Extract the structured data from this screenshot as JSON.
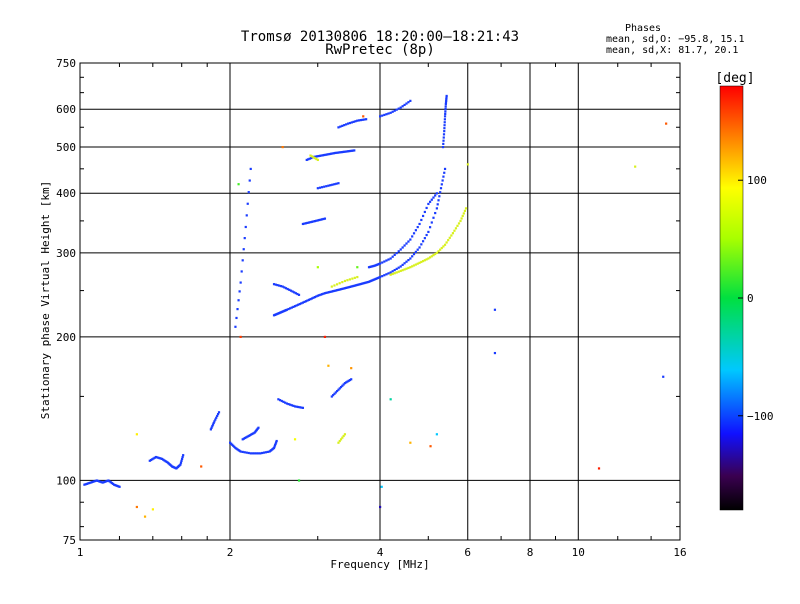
{
  "chart_data": {
    "type": "scatter",
    "title": "Tromsø 20130806 18:20:00–18:21:43",
    "subtitle": "RwPretec (8p)",
    "xlabel": "Frequency [MHz]",
    "ylabel": "Stationary phase Virtual Height [km]",
    "x_scale": "log",
    "y_scale": "log",
    "xlim": [
      1,
      16
    ],
    "ylim": [
      75,
      750
    ],
    "x_ticks": [
      1,
      2,
      4,
      6,
      8,
      10,
      16
    ],
    "x_tick_labels": [
      "1",
      "2",
      "4",
      "6",
      "8",
      "10",
      "16"
    ],
    "y_ticks": [
      75,
      100,
      200,
      300,
      400,
      500,
      600,
      750
    ],
    "y_tick_labels": [
      "75",
      "100",
      "200",
      "300",
      "400",
      "500",
      "600",
      "750"
    ],
    "grid": true,
    "stats": {
      "heading": "Phases",
      "line_o": "mean, sd,O: −95.8, 15.1",
      "line_x": "mean, sd,X:  81.7, 20.1"
    },
    "colorbar": {
      "label": "[deg]",
      "range": [
        -180,
        180
      ],
      "ticks": [
        100,
        0,
        -100
      ],
      "tick_labels": [
        "100",
        "0",
        "−100"
      ]
    },
    "series": [
      {
        "mode": "O",
        "phase": -100,
        "color": "#1a3cff",
        "traces": [
          {
            "x": [
              1.02,
              1.05,
              1.08,
              1.11,
              1.14,
              1.17,
              1.2
            ],
            "y": [
              98,
              99,
              100,
              99,
              100,
              98,
              97
            ]
          },
          {
            "x": [
              1.38,
              1.42,
              1.46,
              1.5,
              1.53,
              1.56,
              1.59,
              1.61
            ],
            "y": [
              110,
              112,
              111,
              109,
              107,
              106,
              108,
              113
            ]
          },
          {
            "x": [
              2.0,
              2.05,
              2.1,
              2.2,
              2.3,
              2.4,
              2.45,
              2.48
            ],
            "y": [
              120,
              117,
              115,
              114,
              114,
              115,
              117,
              121
            ]
          },
          {
            "x": [
              1.83,
              1.86,
              1.9
            ],
            "y": [
              128,
              133,
              139
            ]
          },
          {
            "x": [
              2.12,
              2.18,
              2.24,
              2.28
            ],
            "y": [
              122,
              124,
              126,
              129
            ]
          },
          {
            "x": [
              2.5,
              2.6,
              2.7,
              2.8
            ],
            "y": [
              148,
              145,
              143,
              142
            ]
          },
          {
            "x": [
              3.2,
              3.3,
              3.4,
              3.5
            ],
            "y": [
              150,
              155,
              160,
              163
            ]
          },
          {
            "x": [
              2.45,
              2.5,
              2.55,
              2.6,
              2.7,
              2.8,
              2.9,
              3.0,
              3.1,
              3.2,
              3.3,
              3.4,
              3.5,
              3.6,
              3.7,
              3.8,
              3.9,
              4.0,
              4.2,
              4.4,
              4.6,
              4.8,
              5.0,
              5.2,
              5.3,
              5.4
            ],
            "y": [
              222,
              224,
              226,
              228,
              232,
              236,
              240,
              244,
              247,
              249,
              251,
              253,
              255,
              257,
              259,
              261,
              264,
              267,
              273,
              281,
              292,
              308,
              332,
              372,
              410,
              450
            ]
          },
          {
            "x": [
              5.35,
              5.38,
              5.4,
              5.42,
              5.44
            ],
            "y": [
              500,
              540,
              580,
              615,
              640
            ]
          },
          {
            "x": [
              2.45,
              2.55,
              2.65,
              2.75
            ],
            "y": [
              258,
              255,
              250,
              245
            ]
          },
          {
            "x": [
              3.8,
              3.9,
              4.0,
              4.2,
              4.4,
              4.6,
              4.8,
              5.0,
              5.2
            ],
            "y": [
              280,
              282,
              285,
              292,
              305,
              320,
              345,
              380,
              400
            ]
          },
          {
            "x": [
              2.85,
              2.95,
              3.05,
              3.15,
              3.25,
              3.35,
              3.45,
              3.55
            ],
            "y": [
              470,
              477,
              480,
              483,
              486,
              488,
              490,
              492
            ]
          },
          {
            "x": [
              3.3,
              3.45,
              3.6,
              3.75
            ],
            "y": [
              550,
              560,
              568,
              572
            ]
          },
          {
            "x": [
              2.8,
              2.9,
              3.0,
              3.1
            ],
            "y": [
              345,
              348,
              351,
              354
            ]
          },
          {
            "x": [
              3.0,
              3.15,
              3.3
            ],
            "y": [
              410,
              415,
              420
            ]
          },
          {
            "x": [
              2.05,
              2.1,
              2.15,
              2.2
            ],
            "y": [
              210,
              260,
              340,
              450
            ]
          },
          {
            "x": [
              4.0,
              4.2,
              4.4,
              4.6
            ],
            "y": [
              580,
              590,
              605,
              625
            ]
          },
          {
            "x": [
              6.8
            ],
            "y": [
              228
            ]
          },
          {
            "x": [
              6.8
            ],
            "y": [
              185
            ]
          },
          {
            "x": [
              14.8
            ],
            "y": [
              165
            ]
          }
        ]
      },
      {
        "mode": "X",
        "phase": 80,
        "color": "#d8f020",
        "traces": [
          {
            "x": [
              4.2,
              4.4,
              4.6,
              4.8,
              5.0,
              5.2,
              5.4,
              5.6,
              5.8,
              5.95
            ],
            "y": [
              270,
              275,
              280,
              286,
              292,
              300,
              312,
              330,
              350,
              372
            ]
          },
          {
            "x": [
              3.2,
              3.4,
              3.6
            ],
            "y": [
              255,
              262,
              267
            ]
          },
          {
            "x": [
              3.3,
              3.4
            ],
            "y": [
              120,
              125
            ]
          },
          {
            "x": [
              2.9,
              3.0
            ],
            "y": [
              480,
              470
            ]
          },
          {
            "x": [
              6.0
            ],
            "y": [
              460
            ]
          },
          {
            "x": [
              13.0
            ],
            "y": [
              455
            ]
          }
        ]
      }
    ],
    "scattered_points": [
      {
        "x": 1.3,
        "y": 88,
        "phase": 140
      },
      {
        "x": 1.35,
        "y": 84,
        "phase": 120
      },
      {
        "x": 1.4,
        "y": 87,
        "phase": 100
      },
      {
        "x": 1.3,
        "y": 125,
        "phase": 100
      },
      {
        "x": 1.75,
        "y": 107,
        "phase": 150
      },
      {
        "x": 2.08,
        "y": 418,
        "phase": 20
      },
      {
        "x": 2.1,
        "y": 200,
        "phase": 160
      },
      {
        "x": 2.7,
        "y": 122,
        "phase": 90
      },
      {
        "x": 2.75,
        "y": 100,
        "phase": 10
      },
      {
        "x": 3.1,
        "y": 200,
        "phase": 170
      },
      {
        "x": 3.15,
        "y": 174,
        "phase": 120
      },
      {
        "x": 3.5,
        "y": 172,
        "phase": 130
      },
      {
        "x": 4.03,
        "y": 97,
        "phase": -60
      },
      {
        "x": 4.0,
        "y": 88,
        "phase": -130
      },
      {
        "x": 4.6,
        "y": 120,
        "phase": 120
      },
      {
        "x": 4.2,
        "y": 148,
        "phase": -30
      },
      {
        "x": 5.05,
        "y": 118,
        "phase": 150
      },
      {
        "x": 5.2,
        "y": 125,
        "phase": -60
      },
      {
        "x": 11.0,
        "y": 106,
        "phase": 170
      },
      {
        "x": 15.0,
        "y": 560,
        "phase": 150
      },
      {
        "x": 3.0,
        "y": 280,
        "phase": 50
      },
      {
        "x": 3.6,
        "y": 280,
        "phase": 30
      },
      {
        "x": 2.55,
        "y": 500,
        "phase": 140
      },
      {
        "x": 3.7,
        "y": 580,
        "phase": 150
      }
    ]
  }
}
